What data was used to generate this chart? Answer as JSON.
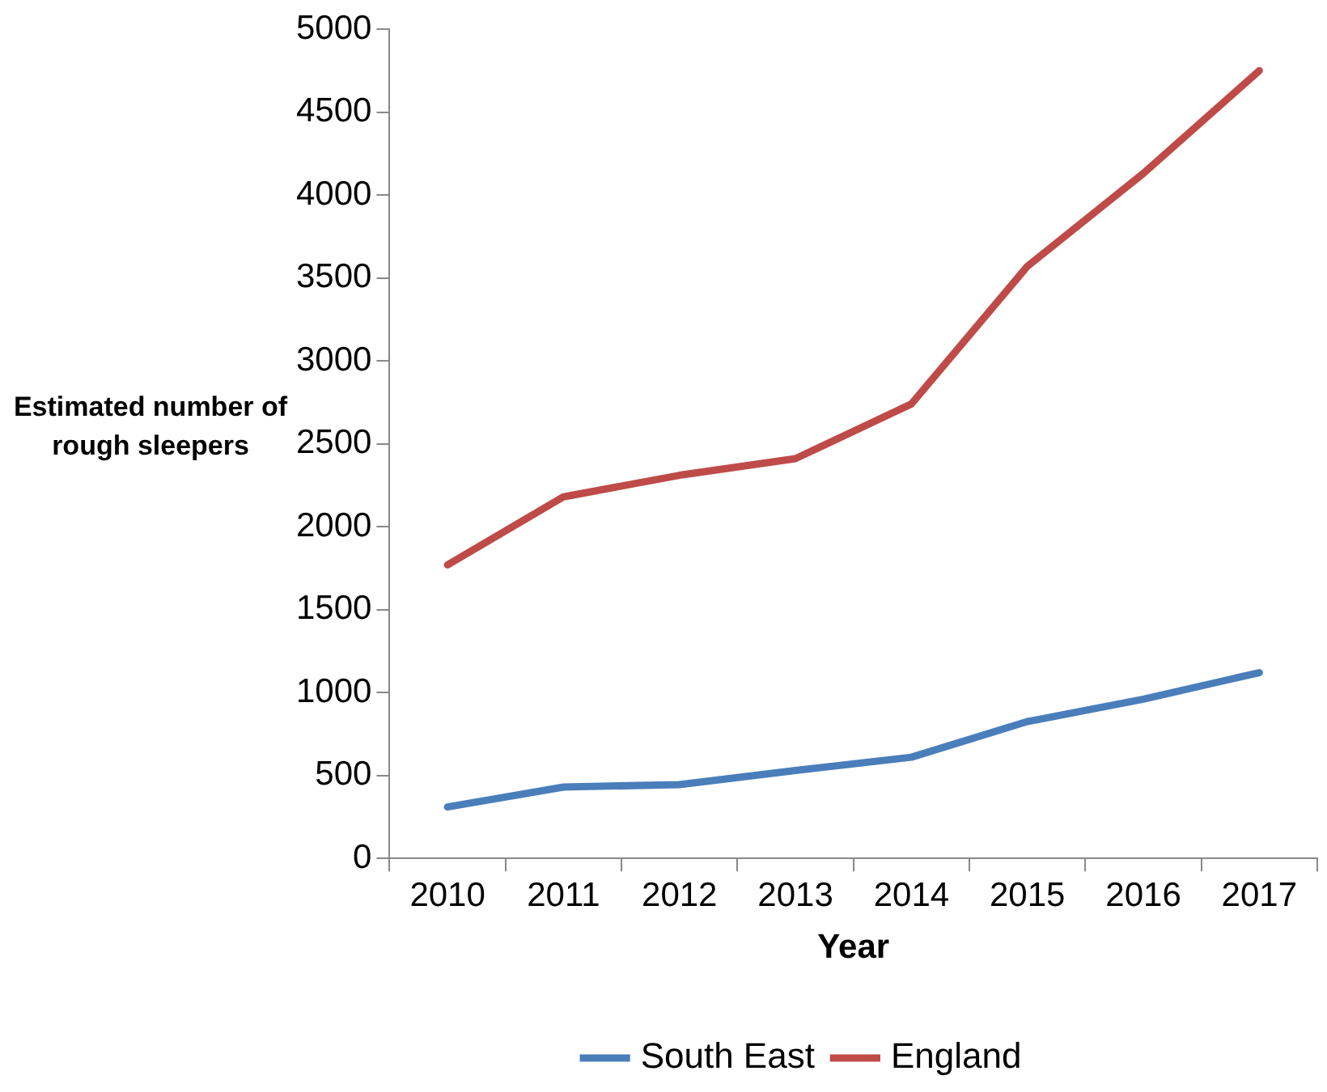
{
  "chart_data": {
    "type": "line",
    "ylabel": "Estimated number of rough sleepers",
    "xlabel": "Year",
    "categories": [
      "2010",
      "2011",
      "2012",
      "2013",
      "2014",
      "2015",
      "2016",
      "2017"
    ],
    "series": [
      {
        "name": "South East",
        "color": "#4a7ebb",
        "values": [
          310,
          430,
          445,
          530,
          610,
          825,
          960,
          1120
        ]
      },
      {
        "name": "England",
        "color": "#be4b48",
        "values": [
          1770,
          2180,
          2310,
          2410,
          2740,
          3570,
          4130,
          4750
        ]
      }
    ],
    "ylim": [
      0,
      5000
    ],
    "yticks": [
      0,
      500,
      1000,
      1500,
      2000,
      2500,
      3000,
      3500,
      4000,
      4500,
      5000
    ],
    "grid": false,
    "legend": "bottom",
    "marker": "none",
    "line_style": "solid"
  }
}
